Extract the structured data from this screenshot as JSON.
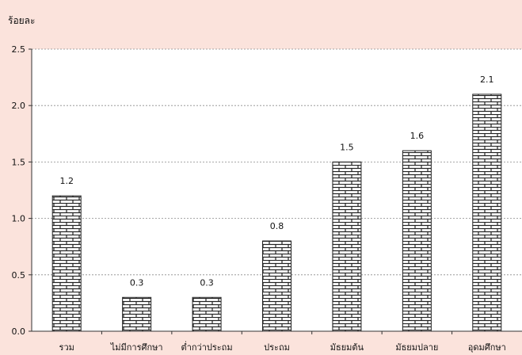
{
  "chart_data": {
    "type": "bar",
    "title": "",
    "ylabel": "ร้อยละ",
    "xlabel": "",
    "categories": [
      "รวม",
      "ไม่มีการศึกษา",
      "ต่ำกว่าประถม",
      "ประถม",
      "มัธยมต้น",
      "มัธยมปลาย",
      "อุดมศึกษา"
    ],
    "values": [
      1.2,
      0.3,
      0.3,
      0.8,
      1.5,
      1.6,
      2.1
    ],
    "data_labels": [
      "1.2",
      "0.3",
      "0.3",
      "0.8",
      "1.5",
      "1.6",
      "2.1"
    ],
    "y_ticks": [
      "0.0",
      "0.5",
      "1.0",
      "1.5",
      "2.0",
      "2.5"
    ],
    "ylim": [
      0,
      2.5
    ],
    "grid": true,
    "bar_fill": "brick-pattern",
    "colors": {
      "background": "#fbe3dc",
      "plot_area": "#ffffff",
      "bar": "#ffffff",
      "bar_pattern": "#222222",
      "grid": "#888888"
    }
  }
}
